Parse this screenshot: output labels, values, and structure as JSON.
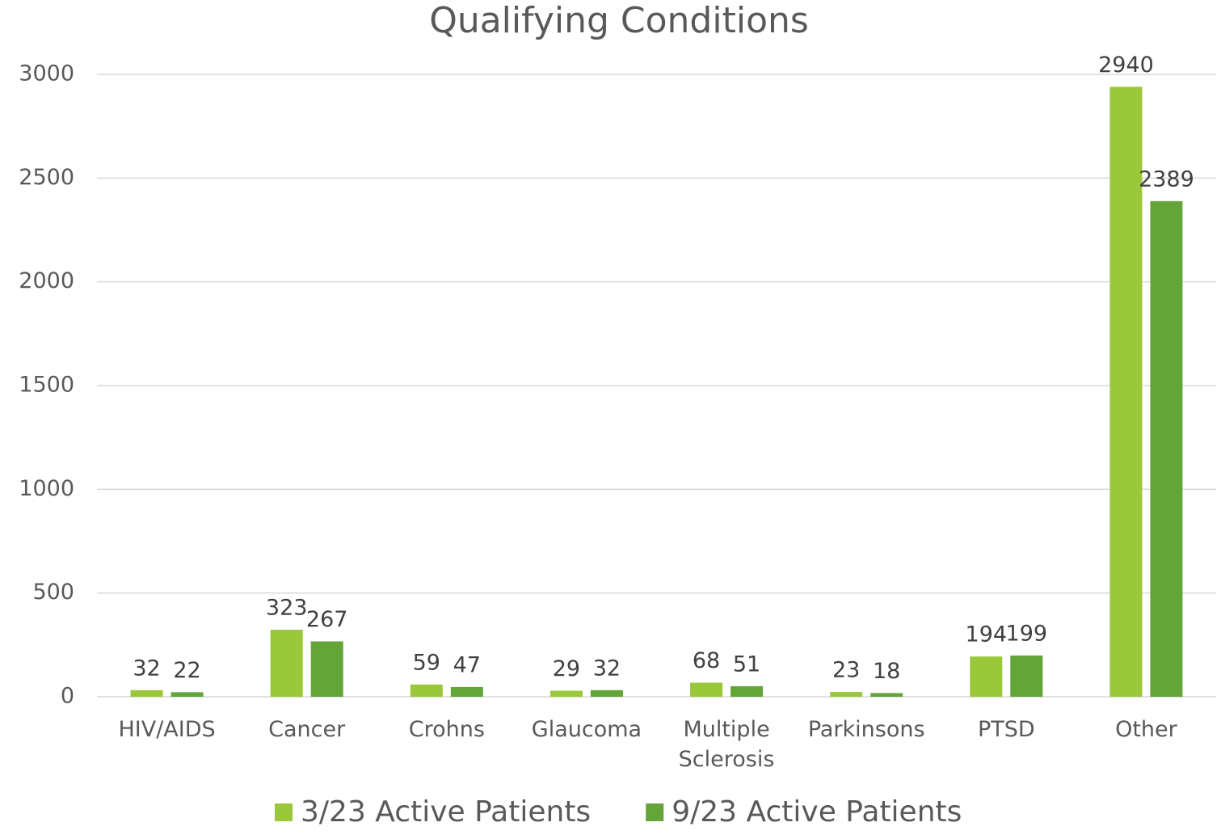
{
  "chart_data": {
    "type": "bar",
    "title": "Qualifying Conditions",
    "categories": [
      "HIV/AIDS",
      "Cancer",
      "Crohns",
      "Glaucoma",
      "Multiple Sclerosis",
      "Parkinsons",
      "PTSD",
      "Other"
    ],
    "series": [
      {
        "name": "3/23 Active Patients",
        "color": "#9bc83a",
        "values": [
          32,
          323,
          59,
          29,
          68,
          23,
          194,
          2940
        ]
      },
      {
        "name": "9/23 Active Patients",
        "color": "#63a538",
        "values": [
          22,
          267,
          47,
          32,
          51,
          18,
          199,
          2389
        ]
      }
    ],
    "ylim": [
      0,
      3000
    ],
    "yticks": [
      0,
      500,
      1000,
      1500,
      2000,
      2500,
      3000
    ],
    "grid": true,
    "legend": "bottom"
  }
}
